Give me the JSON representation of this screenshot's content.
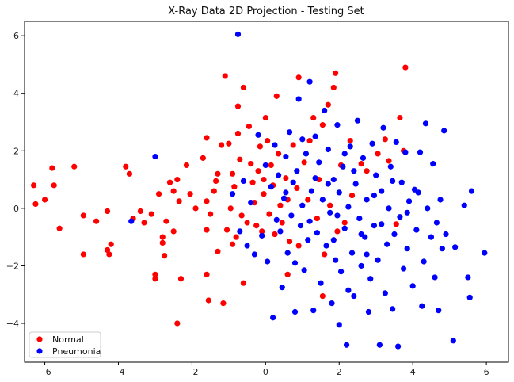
{
  "chart_data": {
    "type": "scatter",
    "title": "X-Ray Data 2D Projection - Testing Set",
    "xlabel": "",
    "ylabel": "",
    "xlim": [
      -6.55,
      6.6
    ],
    "ylim": [
      -5.35,
      6.5
    ],
    "x_ticks": [
      -6,
      -4,
      -2,
      0,
      2,
      4,
      6
    ],
    "y_ticks": [
      -4,
      -2,
      0,
      2,
      4,
      6
    ],
    "x_tick_labels": [
      "−6",
      "−4",
      "−2",
      "0",
      "2",
      "4",
      "6"
    ],
    "y_tick_labels": [
      "−4",
      "−2",
      "0",
      "2",
      "4",
      "6"
    ],
    "grid": false,
    "legend_position": "bottom-left",
    "series": [
      {
        "name": "Normal",
        "color": "#ff0000",
        "points": [
          [
            -6.3,
            0.8
          ],
          [
            -6.25,
            0.15
          ],
          [
            -6.0,
            0.3
          ],
          [
            -5.8,
            1.4
          ],
          [
            -5.75,
            0.8
          ],
          [
            -5.6,
            -0.7
          ],
          [
            -5.2,
            1.45
          ],
          [
            -4.95,
            -0.25
          ],
          [
            -4.95,
            -1.6
          ],
          [
            -4.6,
            -0.45
          ],
          [
            -4.3,
            -1.45
          ],
          [
            -4.25,
            -1.6
          ],
          [
            -4.2,
            -1.25
          ],
          [
            -4.3,
            -0.1
          ],
          [
            -3.8,
            1.45
          ],
          [
            -3.7,
            1.2
          ],
          [
            -3.6,
            -0.35
          ],
          [
            -3.4,
            -0.1
          ],
          [
            -3.3,
            -0.5
          ],
          [
            -3.1,
            -0.2
          ],
          [
            -3.0,
            -2.3
          ],
          [
            -3.0,
            -2.45
          ],
          [
            -2.9,
            0.5
          ],
          [
            -2.8,
            -1.0
          ],
          [
            -2.8,
            -1.2
          ],
          [
            -2.75,
            -1.65
          ],
          [
            -2.6,
            0.9
          ],
          [
            -2.5,
            0.6
          ],
          [
            -2.5,
            -0.8
          ],
          [
            -2.4,
            1.0
          ],
          [
            -2.35,
            0.25
          ],
          [
            -2.3,
            -2.45
          ],
          [
            -2.15,
            1.5
          ],
          [
            -2.05,
            0.5
          ],
          [
            -1.9,
            0.0
          ],
          [
            -1.7,
            1.75
          ],
          [
            -1.6,
            2.45
          ],
          [
            -1.6,
            0.25
          ],
          [
            -1.6,
            -2.3
          ],
          [
            -1.55,
            -3.2
          ],
          [
            -1.5,
            -0.2
          ],
          [
            -1.4,
            0.6
          ],
          [
            -1.35,
            0.95
          ],
          [
            -1.3,
            -1.5
          ],
          [
            -1.3,
            1.2
          ],
          [
            -1.2,
            2.2
          ],
          [
            -1.15,
            -3.3
          ],
          [
            -1.1,
            4.6
          ],
          [
            -1.05,
            -0.75
          ],
          [
            -1.0,
            2.25
          ],
          [
            -0.95,
            0.0
          ],
          [
            -0.9,
            1.2
          ],
          [
            -0.85,
            0.75
          ],
          [
            -0.8,
            -1.0
          ],
          [
            -0.75,
            3.55
          ],
          [
            -0.75,
            2.6
          ],
          [
            -0.7,
            1.7
          ],
          [
            -0.65,
            -0.25
          ],
          [
            -0.6,
            4.2
          ],
          [
            -0.6,
            -2.6
          ],
          [
            -0.5,
            -0.5
          ],
          [
            -0.45,
            2.85
          ],
          [
            -0.4,
            1.55
          ],
          [
            -0.35,
            0.9
          ],
          [
            -0.3,
            0.2
          ],
          [
            -0.25,
            -0.6
          ],
          [
            -0.2,
            1.3
          ],
          [
            -0.15,
            2.15
          ],
          [
            -0.1,
            -0.8
          ],
          [
            -0.05,
            0.5
          ],
          [
            0.0,
            3.15
          ],
          [
            0.05,
            2.35
          ],
          [
            0.1,
            -0.2
          ],
          [
            0.15,
            1.5
          ],
          [
            0.2,
            0.8
          ],
          [
            0.25,
            -0.9
          ],
          [
            0.3,
            3.9
          ],
          [
            0.35,
            1.9
          ],
          [
            0.4,
            0.1
          ],
          [
            0.45,
            -0.5
          ],
          [
            0.55,
            1.05
          ],
          [
            0.6,
            0.3
          ],
          [
            0.65,
            -1.15
          ],
          [
            0.75,
            2.2
          ],
          [
            0.85,
            0.7
          ],
          [
            0.9,
            4.55
          ],
          [
            0.9,
            -1.3
          ],
          [
            1.05,
            1.6
          ],
          [
            1.15,
            0.3
          ],
          [
            1.2,
            2.35
          ],
          [
            1.3,
            3.15
          ],
          [
            1.4,
            -0.35
          ],
          [
            1.45,
            1.0
          ],
          [
            1.55,
            2.9
          ],
          [
            1.6,
            -1.6
          ],
          [
            1.7,
            3.6
          ],
          [
            1.75,
            0.1
          ],
          [
            1.85,
            4.2
          ],
          [
            1.9,
            4.7
          ],
          [
            1.95,
            -0.8
          ],
          [
            2.05,
            1.5
          ],
          [
            2.15,
            -0.5
          ],
          [
            2.3,
            2.35
          ],
          [
            2.35,
            0.45
          ],
          [
            2.6,
            1.55
          ],
          [
            2.75,
            1.3
          ],
          [
            3.05,
            1.9
          ],
          [
            3.25,
            2.4
          ],
          [
            3.35,
            1.65
          ],
          [
            3.55,
            -0.55
          ],
          [
            3.65,
            3.15
          ],
          [
            3.75,
            2.0
          ],
          [
            3.8,
            4.9
          ],
          [
            1.55,
            -3.05
          ],
          [
            -1.6,
            -0.75
          ],
          [
            -2.7,
            -0.45
          ],
          [
            -0.9,
            -1.25
          ],
          [
            0.6,
            -2.3
          ],
          [
            -0.05,
            1.0
          ],
          [
            -2.4,
            -4.0
          ]
        ]
      },
      {
        "name": "Pneumonia",
        "color": "#0000ff",
        "points": [
          [
            -0.75,
            6.05
          ],
          [
            -3.65,
            -0.45
          ],
          [
            -3.0,
            1.8
          ],
          [
            -0.9,
            0.5
          ],
          [
            -0.7,
            -0.8
          ],
          [
            -0.6,
            0.95
          ],
          [
            -0.5,
            -1.3
          ],
          [
            -0.4,
            0.2
          ],
          [
            -0.3,
            -1.6
          ],
          [
            -0.2,
            2.55
          ],
          [
            -0.1,
            -0.95
          ],
          [
            0.0,
            1.5
          ],
          [
            0.05,
            -1.85
          ],
          [
            0.15,
            0.75
          ],
          [
            0.2,
            -3.8
          ],
          [
            0.25,
            2.2
          ],
          [
            0.3,
            -0.4
          ],
          [
            0.35,
            1.15
          ],
          [
            0.4,
            -0.8
          ],
          [
            0.45,
            -2.75
          ],
          [
            0.5,
            0.35
          ],
          [
            0.55,
            1.8
          ],
          [
            0.6,
            -1.55
          ],
          [
            0.65,
            2.65
          ],
          [
            0.7,
            -0.25
          ],
          [
            0.75,
            0.9
          ],
          [
            0.8,
            -3.6
          ],
          [
            0.85,
            1.3
          ],
          [
            0.9,
            3.8
          ],
          [
            0.95,
            -0.6
          ],
          [
            1.0,
            0.1
          ],
          [
            1.05,
            -2.15
          ],
          [
            1.1,
            1.9
          ],
          [
            1.15,
            -1.1
          ],
          [
            1.2,
            4.4
          ],
          [
            1.25,
            0.6
          ],
          [
            1.3,
            -3.55
          ],
          [
            1.35,
            2.5
          ],
          [
            1.4,
            -0.85
          ],
          [
            1.45,
            1.6
          ],
          [
            1.5,
            -2.6
          ],
          [
            1.55,
            0.3
          ],
          [
            1.6,
            3.4
          ],
          [
            1.65,
            -1.3
          ],
          [
            1.7,
            2.05
          ],
          [
            1.75,
            -0.15
          ],
          [
            1.8,
            -3.3
          ],
          [
            1.85,
            1.0
          ],
          [
            1.9,
            -1.8
          ],
          [
            1.95,
            2.9
          ],
          [
            2.0,
            0.55
          ],
          [
            2.0,
            -4.05
          ],
          [
            2.05,
            -2.2
          ],
          [
            2.1,
            1.45
          ],
          [
            2.15,
            -0.7
          ],
          [
            2.2,
            -4.75
          ],
          [
            2.25,
            0.05
          ],
          [
            2.3,
            2.15
          ],
          [
            2.35,
            -1.55
          ],
          [
            2.4,
            -3.05
          ],
          [
            2.45,
            0.85
          ],
          [
            2.5,
            3.05
          ],
          [
            2.55,
            -0.35
          ],
          [
            2.6,
            -2.0
          ],
          [
            2.65,
            1.75
          ],
          [
            2.7,
            -1.0
          ],
          [
            2.75,
            0.3
          ],
          [
            2.8,
            -3.6
          ],
          [
            2.85,
            -2.45
          ],
          [
            2.9,
            2.25
          ],
          [
            2.95,
            -0.6
          ],
          [
            3.0,
            1.15
          ],
          [
            3.05,
            -1.8
          ],
          [
            3.1,
            -4.75
          ],
          [
            3.15,
            0.6
          ],
          [
            3.2,
            2.8
          ],
          [
            3.25,
            -2.95
          ],
          [
            3.3,
            -1.25
          ],
          [
            3.35,
            0.0
          ],
          [
            3.4,
            1.45
          ],
          [
            3.45,
            -3.5
          ],
          [
            3.5,
            -0.9
          ],
          [
            3.55,
            2.3
          ],
          [
            3.6,
            -4.8
          ],
          [
            3.65,
            -0.3
          ],
          [
            3.7,
            0.9
          ],
          [
            3.75,
            -2.1
          ],
          [
            3.8,
            1.95
          ],
          [
            3.85,
            -1.4
          ],
          [
            3.9,
            0.25
          ],
          [
            4.0,
            -2.7
          ],
          [
            4.05,
            0.65
          ],
          [
            4.1,
            -0.75
          ],
          [
            4.2,
            1.95
          ],
          [
            4.25,
            -3.4
          ],
          [
            4.3,
            -1.85
          ],
          [
            4.35,
            2.95
          ],
          [
            4.4,
            0.0
          ],
          [
            4.5,
            -1.0
          ],
          [
            4.55,
            1.55
          ],
          [
            4.6,
            -2.4
          ],
          [
            4.65,
            -0.5
          ],
          [
            4.7,
            -3.55
          ],
          [
            4.75,
            0.3
          ],
          [
            4.8,
            -1.4
          ],
          [
            4.85,
            2.7
          ],
          [
            4.9,
            -0.9
          ],
          [
            5.1,
            -4.6
          ],
          [
            5.15,
            -1.35
          ],
          [
            5.4,
            0.1
          ],
          [
            5.5,
            -2.4
          ],
          [
            5.55,
            -3.1
          ],
          [
            5.6,
            0.6
          ],
          [
            5.95,
            -1.55
          ],
          [
            0.8,
            -1.9
          ],
          [
            1.2,
            -0.45
          ],
          [
            1.7,
            0.85
          ],
          [
            2.25,
            -2.85
          ],
          [
            2.95,
            0.45
          ],
          [
            3.45,
            0.95
          ],
          [
            1.35,
            1.05
          ],
          [
            1.95,
            -0.25
          ],
          [
            2.6,
            -0.9
          ],
          [
            3.15,
            -0.55
          ],
          [
            0.55,
            0.55
          ],
          [
            1.0,
            2.4
          ],
          [
            2.4,
            1.3
          ],
          [
            2.15,
            1.9
          ],
          [
            1.85,
            -1.1
          ],
          [
            3.85,
            -0.15
          ],
          [
            4.15,
            0.55
          ],
          [
            2.75,
            -1.6
          ]
        ]
      }
    ]
  }
}
